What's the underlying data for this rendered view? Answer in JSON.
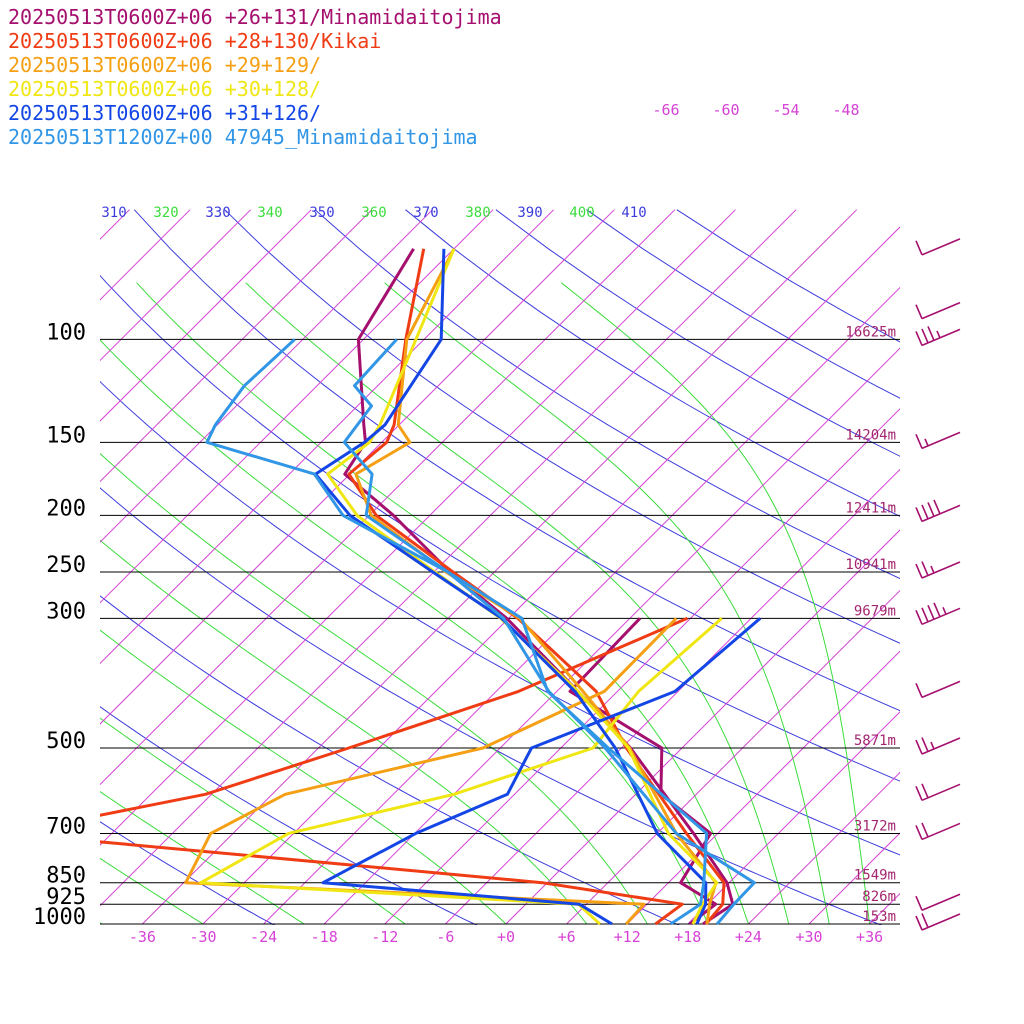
{
  "legend": [
    {
      "text": "20250513T0600Z+06 +26+131/Minamidaitojima",
      "color": "#a50f6e"
    },
    {
      "text": "20250513T0600Z+06 +28+130/Kikai",
      "color": "#f03c14"
    },
    {
      "text": "20250513T0600Z+06 +29+129/",
      "color": "#f5a014"
    },
    {
      "text": "20250513T0600Z+06 +30+128/",
      "color": "#f0e614"
    },
    {
      "text": "20250513T0600Z+06 +31+126/",
      "color": "#1446e6"
    },
    {
      "text": "20250513T1200Z+00 47945_Minamidaitojima",
      "color": "#3296e6"
    }
  ],
  "chart_data": {
    "type": "skew-t",
    "pressure_labels": [
      {
        "p": 100,
        "text": "100",
        "height": "16625m"
      },
      {
        "p": 150,
        "text": "150",
        "height": "14204m"
      },
      {
        "p": 200,
        "text": "200",
        "height": "12411m"
      },
      {
        "p": 250,
        "text": "250",
        "height": "10941m"
      },
      {
        "p": 300,
        "text": "300",
        "height": "9679m"
      },
      {
        "p": 500,
        "text": "500",
        "height": "5871m"
      },
      {
        "p": 700,
        "text": "700",
        "height": "3172m"
      },
      {
        "p": 850,
        "text": "850",
        "height": "1549m"
      },
      {
        "p": 925,
        "text": "925",
        "height": "826m"
      },
      {
        "p": 1000,
        "text": "1000",
        "height": "153m"
      }
    ],
    "temperature_ticks": [
      "-36",
      "-30",
      "-24",
      "-18",
      "-12",
      "-6",
      "+0",
      "+6",
      "+12",
      "+18",
      "+24",
      "+30",
      "+36"
    ],
    "theta_labels": [
      "310",
      "320",
      "330",
      "340",
      "350",
      "360",
      "370",
      "380",
      "390",
      "400",
      "410"
    ],
    "mixing_ratio_labels": [
      "-66",
      "-60",
      "-54",
      "-48"
    ],
    "series": [
      {
        "color": "#a50f6e",
        "temperature": [
          [
            1000,
            19.5
          ],
          [
            925,
            20.5
          ],
          [
            850,
            17.8
          ],
          [
            700,
            9.6
          ],
          [
            500,
            -5.1
          ],
          [
            400,
            -15.9
          ],
          [
            300,
            -30.2
          ],
          [
            250,
            -40.4
          ],
          [
            200,
            -51.6
          ],
          [
            170,
            -60.5
          ],
          [
            150,
            -61.6
          ],
          [
            140,
            -63.5
          ],
          [
            100,
            -72.5
          ],
          [
            70,
            -76
          ]
        ],
        "dewpoint": [
          [
            1000,
            18.2
          ],
          [
            925,
            18.8
          ],
          [
            850,
            13.2
          ],
          [
            700,
            11.3
          ],
          [
            600,
            2.5
          ],
          [
            500,
            -2
          ],
          [
            400,
            -16.7
          ],
          [
            300,
            -17
          ]
        ]
      },
      {
        "color": "#f03c14",
        "temperature": [
          [
            1000,
            19.8
          ],
          [
            925,
            19.5
          ],
          [
            850,
            17.5
          ],
          [
            700,
            8.9
          ],
          [
            500,
            -5.5
          ],
          [
            400,
            -14.1
          ],
          [
            300,
            -29.1
          ],
          [
            250,
            -40.1
          ],
          [
            200,
            -53.3
          ],
          [
            170,
            -60.1
          ],
          [
            150,
            -59.5
          ],
          [
            140,
            -60.5
          ],
          [
            100,
            -67.8
          ],
          [
            70,
            -75
          ]
        ],
        "dewpoint": [
          [
            1000,
            14.8
          ],
          [
            925,
            15.5
          ],
          [
            850,
            -0.5
          ],
          [
            700,
            -58.2
          ],
          [
            600,
            -42.6
          ],
          [
            500,
            -33
          ],
          [
            400,
            -21.8
          ],
          [
            300,
            -12.3
          ]
        ]
      },
      {
        "color": "#f5a014",
        "temperature": [
          [
            1000,
            19.9
          ],
          [
            925,
            18.2
          ],
          [
            850,
            16.7
          ],
          [
            700,
            7.9
          ],
          [
            500,
            -5.2
          ],
          [
            400,
            -15.4
          ],
          [
            300,
            -28.9
          ],
          [
            250,
            -40.8
          ],
          [
            200,
            -53.8
          ],
          [
            170,
            -59.4
          ],
          [
            150,
            -57.2
          ],
          [
            140,
            -60.1
          ],
          [
            100,
            -67.7
          ],
          [
            70,
            -72
          ]
        ],
        "dewpoint": [
          [
            1000,
            11.9
          ],
          [
            925,
            11.7
          ],
          [
            850,
            -35.8
          ],
          [
            700,
            -38.2
          ],
          [
            600,
            -34.7
          ],
          [
            500,
            -19.7
          ],
          [
            400,
            -13.3
          ],
          [
            300,
            -13.4
          ]
        ]
      },
      {
        "color": "#f0e614",
        "temperature": [
          [
            1000,
            18.5
          ],
          [
            925,
            17.5
          ],
          [
            850,
            16.8
          ],
          [
            700,
            7.1
          ],
          [
            500,
            -5.3
          ],
          [
            400,
            -15.9
          ],
          [
            300,
            -30.8
          ],
          [
            250,
            -41.9
          ],
          [
            200,
            -55.2
          ],
          [
            170,
            -62.2
          ],
          [
            150,
            -61.2
          ],
          [
            140,
            -61.9
          ],
          [
            100,
            -66.8
          ],
          [
            70,
            -72
          ]
        ],
        "dewpoint": [
          [
            1000,
            9.3
          ],
          [
            925,
            5.2
          ],
          [
            850,
            -34.3
          ],
          [
            700,
            -30.5
          ],
          [
            600,
            -18
          ],
          [
            500,
            -8.8
          ],
          [
            400,
            -9.9
          ],
          [
            300,
            -8.9
          ]
        ]
      },
      {
        "color": "#1446e6",
        "temperature": [
          [
            1000,
            18.9
          ],
          [
            925,
            17.8
          ],
          [
            850,
            15.7
          ],
          [
            700,
            6
          ],
          [
            500,
            -6.6
          ],
          [
            400,
            -16.2
          ],
          [
            300,
            -30.7
          ],
          [
            250,
            -42.1
          ],
          [
            200,
            -55.9
          ],
          [
            170,
            -63.4
          ],
          [
            150,
            -61.7
          ],
          [
            140,
            -61.4
          ],
          [
            100,
            -64.3
          ],
          [
            70,
            -73
          ]
        ],
        "dewpoint": [
          [
            1000,
            10.5
          ],
          [
            925,
            5.3
          ],
          [
            850,
            -22.2
          ],
          [
            700,
            -17.9
          ],
          [
            600,
            -12.7
          ],
          [
            500,
            -14.9
          ],
          [
            400,
            -6.3
          ],
          [
            300,
            -5.1
          ]
        ]
      },
      {
        "color": "#3296e6",
        "temperature": [
          [
            1000,
            20.9
          ],
          [
            925,
            20.6
          ],
          [
            850,
            20.5
          ],
          [
            700,
            7.9
          ],
          [
            500,
            -7.6
          ],
          [
            400,
            -18.8
          ],
          [
            300,
            -30.5
          ],
          [
            250,
            -40.6
          ],
          [
            200,
            -54.3
          ],
          [
            170,
            -57.8
          ],
          [
            150,
            -63.7
          ],
          [
            130,
            -64.6
          ],
          [
            120,
            -68.3
          ],
          [
            100,
            -68.7
          ]
        ],
        "dewpoint": [
          [
            1000,
            16.3
          ],
          [
            925,
            17.3
          ],
          [
            850,
            15.5
          ],
          [
            700,
            10.9
          ],
          [
            500,
            -7.3
          ],
          [
            400,
            -18.9
          ],
          [
            300,
            -28.7
          ],
          [
            250,
            -40.6
          ],
          [
            200,
            -56.6
          ],
          [
            170,
            -63.5
          ],
          [
            150,
            -77.3
          ],
          [
            140,
            -78.2
          ],
          [
            120,
            -79.2
          ],
          [
            100,
            -78.8
          ]
        ]
      }
    ],
    "wind_barbs": [
      {
        "p": 70,
        "spd": 10
      },
      {
        "p": 90,
        "spd": 10
      },
      {
        "p": 100,
        "spd": 35
      },
      {
        "p": 150,
        "spd": 15
      },
      {
        "p": 200,
        "spd": 40
      },
      {
        "p": 250,
        "spd": 25
      },
      {
        "p": 300,
        "spd": 45
      },
      {
        "p": 400,
        "spd": 10
      },
      {
        "p": 500,
        "spd": 25
      },
      {
        "p": 600,
        "spd": 20
      },
      {
        "p": 700,
        "spd": 20
      },
      {
        "p": 925,
        "spd": 10
      },
      {
        "p": 1000,
        "spd": 20
      }
    ]
  }
}
